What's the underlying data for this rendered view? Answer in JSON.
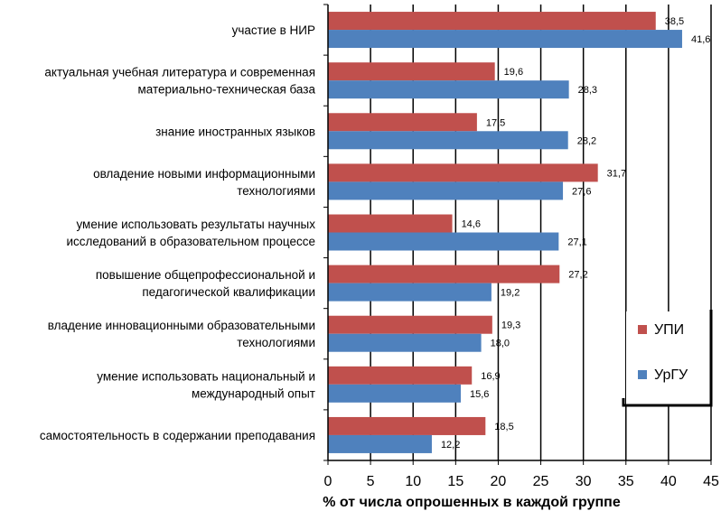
{
  "chart_data": {
    "type": "bar",
    "orientation": "horizontal",
    "categories": [
      [
        "участие в НИР"
      ],
      [
        "актуальная учебная литература и современная",
        "материально-техническая база"
      ],
      [
        "знание иностранных языков"
      ],
      [
        "овладение новыми информационными",
        "технологиями"
      ],
      [
        "умение использовать результаты научных",
        "исследований в образовательном процессе"
      ],
      [
        "повышение общепрофессиональной и",
        "педагогической квалификации"
      ],
      [
        "владение инновационными образовательными",
        "технологиями"
      ],
      [
        "умение использовать национальный и",
        "международный опыт"
      ],
      [
        "самостоятельность в содержании преподавания"
      ]
    ],
    "series": [
      {
        "name": "УПИ",
        "color": "#C0504D",
        "values": [
          38.5,
          19.6,
          17.5,
          31.7,
          14.6,
          27.2,
          19.3,
          16.9,
          18.5
        ],
        "labels": [
          "38,5",
          "19,6",
          "17,5",
          "31,7",
          "14,6",
          "27,2",
          "19,3",
          "16,9",
          "18,5"
        ]
      },
      {
        "name": "УрГУ",
        "color": "#4F81BD",
        "values": [
          41.6,
          28.3,
          28.2,
          27.6,
          27.1,
          19.2,
          18.0,
          15.6,
          12.2
        ],
        "labels": [
          "41,6",
          "28,3",
          "28,2",
          "27,6",
          "27,1",
          "19,2",
          "18,0",
          "15,6",
          "12,2"
        ]
      }
    ],
    "xlim": [
      0,
      45
    ],
    "xticks": [
      "0",
      "5",
      "10",
      "15",
      "20",
      "25",
      "30",
      "35",
      "40",
      "45"
    ],
    "xlabel": "% от числа опрошенных в каждой группе",
    "ylabel": "",
    "title": "",
    "grid": "vertical",
    "legend": "right"
  }
}
